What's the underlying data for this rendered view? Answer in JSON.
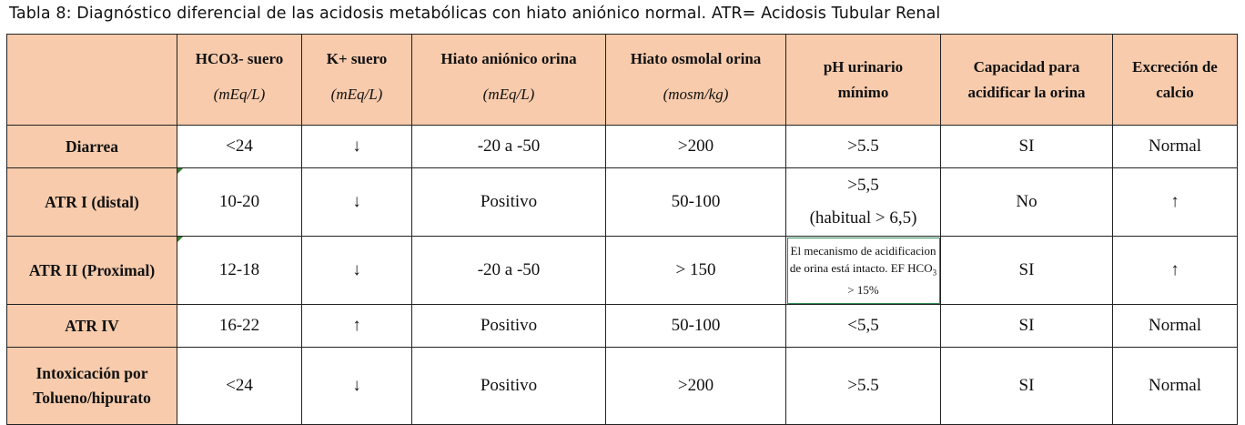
{
  "caption": "Tabla 8: Diagnóstico diferencial de las acidosis metabólicas con hiato aniónico normal. ATR= Acidosis Tubular Renal",
  "header": {
    "blank": "",
    "hco3": "HCO3- suero",
    "hco3_unit": "(mEq/L)",
    "k": "K+ suero",
    "k_unit": "(mEq/L)",
    "anion_gap": "Hiato aniónico orina",
    "anion_gap_unit": "(mEq/L)",
    "osmolal_gap": "Hiato osmolal orina",
    "osmolal_gap_unit": "(mosm/kg)",
    "ph_min": "pH urinario mínimo",
    "acidify": "Capacidad para acidificar la orina",
    "calcium": "Excreción de calcio"
  },
  "rows": [
    {
      "name": "Diarrea",
      "hco3": "<24",
      "k": "↓",
      "anion_gap": "-20 a -50",
      "osmolal_gap": ">200",
      "ph_min": ">5.5",
      "acidify": "SI",
      "calcium": "Normal"
    },
    {
      "name": "ATR I (distal)",
      "hco3": "10-20",
      "k": "↓",
      "anion_gap": "Positivo",
      "osmolal_gap": "50-100",
      "ph_min": ">5,5",
      "ph_min_note": "(habitual > 6,5)",
      "acidify": "No",
      "calcium": "↑"
    },
    {
      "name": "ATR II (Proximal)",
      "hco3": "12-18",
      "k": "↓",
      "anion_gap": "-20 a -50",
      "osmolal_gap": "> 150",
      "ph_min_a": "El mecanismo de acidificacion de orina está intacto. EF HCO",
      "ph_min_sub": "3",
      "ph_min_b": " > 15%",
      "acidify": "SI",
      "calcium": "↑"
    },
    {
      "name": "ATR IV",
      "hco3": "16-22",
      "k": "↑",
      "anion_gap": "Positivo",
      "osmolal_gap": "50-100",
      "ph_min": "<5,5",
      "acidify": "SI",
      "calcium": "Normal"
    },
    {
      "name_line1": "Intoxicación por",
      "name_line2": "Tolueno/hipurato",
      "hco3": "<24",
      "k": "↓",
      "anion_gap": "Positivo",
      "osmolal_gap": ">200",
      "ph_min": ">5.5",
      "acidify": "SI",
      "calcium": "Normal"
    }
  ],
  "colors": {
    "header_fill": "#f7cbac",
    "border": "#222222",
    "note_border": "#2e8b57"
  }
}
